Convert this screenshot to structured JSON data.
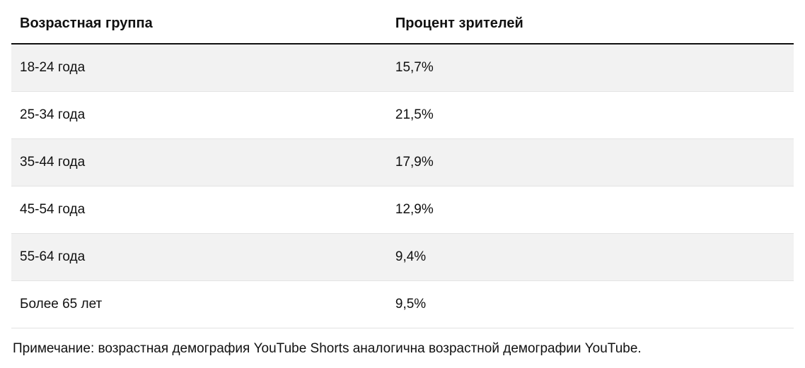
{
  "table": {
    "type": "table",
    "columns": [
      "Возрастная группа",
      "Процент зрителей"
    ],
    "column_widths_pct": [
      48,
      52
    ],
    "rows": [
      [
        "18-24 года",
        "15,7%"
      ],
      [
        "25-34 года",
        "21,5%"
      ],
      [
        "35-44 года",
        "17,9%"
      ],
      [
        "45-54 года",
        "12,9%"
      ],
      [
        "55-64 года",
        "9,4%"
      ],
      [
        "Более 65 лет",
        "9,5%"
      ]
    ],
    "header_fontsize_pt": 15,
    "cell_fontsize_pt": 14,
    "header_border_color": "#111111",
    "row_border_color": "#e3e3e3",
    "stripe_color": "#f2f2f2",
    "background_color": "#ffffff",
    "text_color": "#111111"
  },
  "note": "Примечание: возрастная демография YouTube Shorts аналогична возрастной демографии YouTube."
}
